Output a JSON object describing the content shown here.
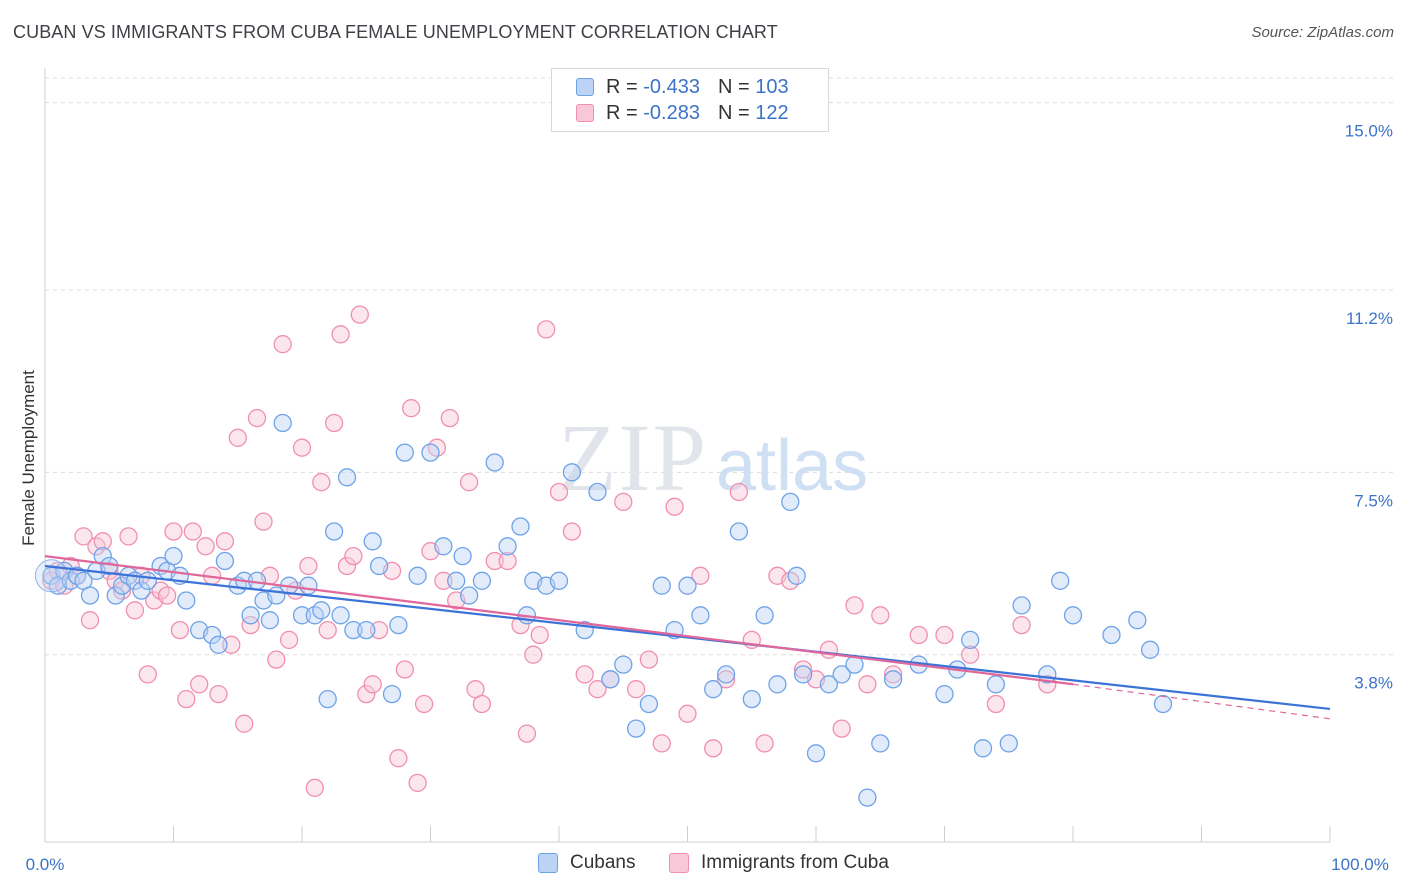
{
  "title": "CUBAN VS IMMIGRANTS FROM CUBA FEMALE UNEMPLOYMENT CORRELATION CHART",
  "source": "Source: ZipAtlas.com",
  "watermark": {
    "zip": "ZIP",
    "atlas": "atlas"
  },
  "legend": {
    "rows": [
      {
        "r_label": "R =",
        "r_value": "-0.433",
        "n_label": "N =",
        "n_value": "103",
        "color": "#6fa3e8",
        "fill": "#bcd3f5"
      },
      {
        "r_label": "R =",
        "r_value": "-0.283",
        "n_label": "N =",
        "n_value": "122",
        "color": "#f08fb0",
        "fill": "#f9c8d8"
      }
    ]
  },
  "bottom_legend": [
    {
      "label": "Cubans",
      "color": "#6fa3e8",
      "fill": "#bcd3f5"
    },
    {
      "label": "Immigrants from Cuba",
      "color": "#f08fb0",
      "fill": "#f9c8d8"
    }
  ],
  "chart_data": {
    "type": "scatter",
    "ylabel": "Female Unemployment",
    "xlabel": "",
    "xlim": [
      0,
      100
    ],
    "ylim": [
      0,
      15.5
    ],
    "x_tick_labels": [
      "0.0%",
      "100.0%"
    ],
    "y_ticks": [
      {
        "value": 3.8,
        "label": "3.8%"
      },
      {
        "value": 7.5,
        "label": "7.5%"
      },
      {
        "value": 11.2,
        "label": "11.2%"
      },
      {
        "value": 15.0,
        "label": "15.0%"
      }
    ],
    "grid": "horizontal dashed",
    "series": [
      {
        "name": "Cubans",
        "color": "#3b73d8",
        "marker_edge": "#6fa3e8",
        "marker_fill": "#bcd3f5",
        "trend": {
          "x": [
            0,
            100
          ],
          "y": [
            5.6,
            2.7
          ]
        },
        "points": [
          [
            0.5,
            5.4
          ],
          [
            1.0,
            5.2
          ],
          [
            1.5,
            5.5
          ],
          [
            2.0,
            5.3
          ],
          [
            2.5,
            5.4
          ],
          [
            3.0,
            5.3
          ],
          [
            3.5,
            5.0
          ],
          [
            4.0,
            5.5
          ],
          [
            4.5,
            5.8
          ],
          [
            5.0,
            5.6
          ],
          [
            5.5,
            5.0
          ],
          [
            6.0,
            5.2
          ],
          [
            6.5,
            5.4
          ],
          [
            7.0,
            5.3
          ],
          [
            7.5,
            5.1
          ],
          [
            8.0,
            5.3
          ],
          [
            9.0,
            5.6
          ],
          [
            9.5,
            5.5
          ],
          [
            10.0,
            5.8
          ],
          [
            10.5,
            5.4
          ],
          [
            11.0,
            4.9
          ],
          [
            12.0,
            4.3
          ],
          [
            13.0,
            4.2
          ],
          [
            13.5,
            4.0
          ],
          [
            14.0,
            5.7
          ],
          [
            15.0,
            5.2
          ],
          [
            15.5,
            5.3
          ],
          [
            16.0,
            4.6
          ],
          [
            16.5,
            5.3
          ],
          [
            17.0,
            4.9
          ],
          [
            17.5,
            4.5
          ],
          [
            18.0,
            5.0
          ],
          [
            18.5,
            8.5
          ],
          [
            19.0,
            5.2
          ],
          [
            20.0,
            4.6
          ],
          [
            20.5,
            5.2
          ],
          [
            21.0,
            4.6
          ],
          [
            21.5,
            4.7
          ],
          [
            22.0,
            2.9
          ],
          [
            22.5,
            6.3
          ],
          [
            23.0,
            4.6
          ],
          [
            23.5,
            7.4
          ],
          [
            24.0,
            4.3
          ],
          [
            25.0,
            4.3
          ],
          [
            25.5,
            6.1
          ],
          [
            26.0,
            5.6
          ],
          [
            27.0,
            3.0
          ],
          [
            27.5,
            4.4
          ],
          [
            28.0,
            7.9
          ],
          [
            29.0,
            5.4
          ],
          [
            30.0,
            7.9
          ],
          [
            31.0,
            6.0
          ],
          [
            32.0,
            5.3
          ],
          [
            32.5,
            5.8
          ],
          [
            33.0,
            5.0
          ],
          [
            34.0,
            5.3
          ],
          [
            35.0,
            7.7
          ],
          [
            36.0,
            6.0
          ],
          [
            37.0,
            6.4
          ],
          [
            37.5,
            4.6
          ],
          [
            38.0,
            5.3
          ],
          [
            39.0,
            5.2
          ],
          [
            40.0,
            5.3
          ],
          [
            41.0,
            7.5
          ],
          [
            42.0,
            4.3
          ],
          [
            43.0,
            7.1
          ],
          [
            44.0,
            3.3
          ],
          [
            45.0,
            3.6
          ],
          [
            46.0,
            2.3
          ],
          [
            47.0,
            2.8
          ],
          [
            48.0,
            5.2
          ],
          [
            49.0,
            4.3
          ],
          [
            50.0,
            5.2
          ],
          [
            51.0,
            4.6
          ],
          [
            52.0,
            3.1
          ],
          [
            53.0,
            3.4
          ],
          [
            54.0,
            6.3
          ],
          [
            55.0,
            2.9
          ],
          [
            56.0,
            4.6
          ],
          [
            57.0,
            3.2
          ],
          [
            58.0,
            6.9
          ],
          [
            58.5,
            5.4
          ],
          [
            59.0,
            3.4
          ],
          [
            60.0,
            1.8
          ],
          [
            61.0,
            3.2
          ],
          [
            62.0,
            3.4
          ],
          [
            63.0,
            3.6
          ],
          [
            64.0,
            0.9
          ],
          [
            65.0,
            2.0
          ],
          [
            66.0,
            3.3
          ],
          [
            68.0,
            3.6
          ],
          [
            70.0,
            3.0
          ],
          [
            71.0,
            3.5
          ],
          [
            72.0,
            4.1
          ],
          [
            73.0,
            1.9
          ],
          [
            74.0,
            3.2
          ],
          [
            75.0,
            2.0
          ],
          [
            76.0,
            4.8
          ],
          [
            78.0,
            3.4
          ],
          [
            79.0,
            5.3
          ],
          [
            80.0,
            4.6
          ],
          [
            83.0,
            4.2
          ],
          [
            85.0,
            4.5
          ],
          [
            86.0,
            3.9
          ],
          [
            87.0,
            2.8
          ]
        ]
      },
      {
        "name": "Immigrants from Cuba",
        "color": "#e0679a",
        "marker_edge": "#f08fb0",
        "marker_fill": "#f9c8d8",
        "trend": {
          "x": [
            0,
            80
          ],
          "y": [
            5.8,
            3.2
          ]
        },
        "trend_dashed": {
          "x": [
            80,
            100
          ],
          "y": [
            3.2,
            2.5
          ]
        },
        "points": [
          [
            0.5,
            5.3
          ],
          [
            1.0,
            5.5
          ],
          [
            1.5,
            5.2
          ],
          [
            2.0,
            5.6
          ],
          [
            2.5,
            5.4
          ],
          [
            3.0,
            6.2
          ],
          [
            3.5,
            4.5
          ],
          [
            4.0,
            6.0
          ],
          [
            4.5,
            6.1
          ],
          [
            5.0,
            5.5
          ],
          [
            5.5,
            5.3
          ],
          [
            6.0,
            5.1
          ],
          [
            6.5,
            6.2
          ],
          [
            7.0,
            4.7
          ],
          [
            7.5,
            5.4
          ],
          [
            8.0,
            3.4
          ],
          [
            8.5,
            4.9
          ],
          [
            9.0,
            5.1
          ],
          [
            9.5,
            5.0
          ],
          [
            10.0,
            6.3
          ],
          [
            10.5,
            4.3
          ],
          [
            11.0,
            2.9
          ],
          [
            11.5,
            6.3
          ],
          [
            12.0,
            3.2
          ],
          [
            12.5,
            6.0
          ],
          [
            13.0,
            5.4
          ],
          [
            13.5,
            3.0
          ],
          [
            14.0,
            6.1
          ],
          [
            14.5,
            4.0
          ],
          [
            15.0,
            8.2
          ],
          [
            15.5,
            2.4
          ],
          [
            16.0,
            4.4
          ],
          [
            16.5,
            8.6
          ],
          [
            17.0,
            6.5
          ],
          [
            17.5,
            5.4
          ],
          [
            18.0,
            3.7
          ],
          [
            18.5,
            10.1
          ],
          [
            19.0,
            4.1
          ],
          [
            19.5,
            5.1
          ],
          [
            20.0,
            8.0
          ],
          [
            20.5,
            5.6
          ],
          [
            21.0,
            1.1
          ],
          [
            21.5,
            7.3
          ],
          [
            22.0,
            4.3
          ],
          [
            22.5,
            8.5
          ],
          [
            23.0,
            10.3
          ],
          [
            23.5,
            5.6
          ],
          [
            24.0,
            5.8
          ],
          [
            24.5,
            10.7
          ],
          [
            25.0,
            3.0
          ],
          [
            25.5,
            3.2
          ],
          [
            26.0,
            4.3
          ],
          [
            27.0,
            5.5
          ],
          [
            27.5,
            1.7
          ],
          [
            28.0,
            3.5
          ],
          [
            28.5,
            8.8
          ],
          [
            29.0,
            1.2
          ],
          [
            29.5,
            2.8
          ],
          [
            30.0,
            5.9
          ],
          [
            30.5,
            8.0
          ],
          [
            31.0,
            5.3
          ],
          [
            31.5,
            8.6
          ],
          [
            32.0,
            4.9
          ],
          [
            33.0,
            7.3
          ],
          [
            33.5,
            3.1
          ],
          [
            34.0,
            2.8
          ],
          [
            35.0,
            5.7
          ],
          [
            36.0,
            5.7
          ],
          [
            37.0,
            4.4
          ],
          [
            37.5,
            2.2
          ],
          [
            38.0,
            3.8
          ],
          [
            38.5,
            4.2
          ],
          [
            39.0,
            10.4
          ],
          [
            40.0,
            7.1
          ],
          [
            41.0,
            6.3
          ],
          [
            42.0,
            3.4
          ],
          [
            43.0,
            3.1
          ],
          [
            44.0,
            3.3
          ],
          [
            45.0,
            6.9
          ],
          [
            46.0,
            3.1
          ],
          [
            47.0,
            3.7
          ],
          [
            48.0,
            2.0
          ],
          [
            49.0,
            6.8
          ],
          [
            50.0,
            2.6
          ],
          [
            51.0,
            5.4
          ],
          [
            52.0,
            1.9
          ],
          [
            53.0,
            3.3
          ],
          [
            54.0,
            7.1
          ],
          [
            55.0,
            4.1
          ],
          [
            56.0,
            2.0
          ],
          [
            57.0,
            5.4
          ],
          [
            58.0,
            5.3
          ],
          [
            59.0,
            3.5
          ],
          [
            60.0,
            3.3
          ],
          [
            61.0,
            3.9
          ],
          [
            62.0,
            2.3
          ],
          [
            63.0,
            4.8
          ],
          [
            64.0,
            3.2
          ],
          [
            65.0,
            4.6
          ],
          [
            66.0,
            3.4
          ],
          [
            68.0,
            4.2
          ],
          [
            70.0,
            4.2
          ],
          [
            72.0,
            3.8
          ],
          [
            74.0,
            2.8
          ],
          [
            76.0,
            4.4
          ],
          [
            78.0,
            3.2
          ]
        ]
      }
    ]
  }
}
